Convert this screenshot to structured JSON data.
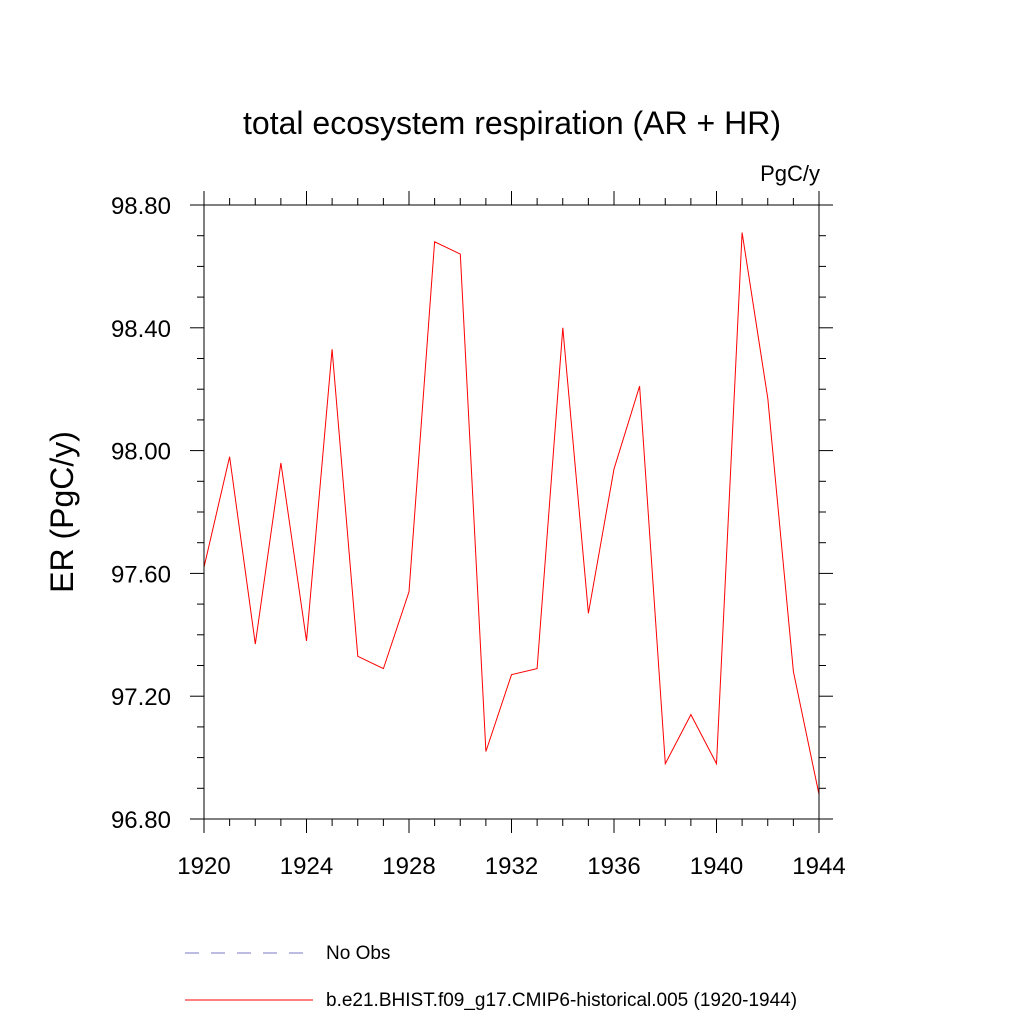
{
  "chart_data": {
    "type": "line",
    "title": "total ecosystem respiration (AR + HR)",
    "units_label": "PgC/y",
    "xlabel": "",
    "ylabel": "ER  (PgC/y)",
    "xlim": [
      1920,
      1944
    ],
    "ylim": [
      96.8,
      98.8
    ],
    "x_ticks": [
      1920,
      1924,
      1928,
      1932,
      1936,
      1940,
      1944
    ],
    "x_tick_labels": [
      "1920",
      "1924",
      "1928",
      "1932",
      "1936",
      "1940",
      "1944"
    ],
    "y_ticks": [
      96.8,
      97.2,
      97.6,
      98.0,
      98.4,
      98.8
    ],
    "y_tick_labels": [
      "96.80",
      "97.20",
      "97.60",
      "98.00",
      "98.40",
      "98.80"
    ],
    "grid": false,
    "legend_position": "bottom",
    "series": [
      {
        "name": "b.e21.BHIST.f09_g17.CMIP6-historical.005 (1920-1944)",
        "color": "#ff0000",
        "style": "solid",
        "x": [
          1920,
          1921,
          1922,
          1923,
          1924,
          1925,
          1926,
          1927,
          1928,
          1929,
          1930,
          1931,
          1932,
          1933,
          1934,
          1935,
          1936,
          1937,
          1938,
          1939,
          1940,
          1941,
          1942,
          1943,
          1944
        ],
        "y": [
          97.62,
          97.98,
          97.37,
          97.96,
          97.38,
          98.33,
          97.33,
          97.29,
          97.54,
          98.68,
          98.64,
          97.02,
          97.27,
          97.29,
          98.4,
          97.47,
          97.94,
          98.21,
          96.98,
          97.14,
          96.98,
          98.71,
          98.17,
          97.28,
          96.88
        ]
      }
    ],
    "legend": [
      {
        "label": "No Obs",
        "color": "#7b7bc9",
        "style": "dashed"
      },
      {
        "label": "b.e21.BHIST.f09_g17.CMIP6-historical.005 (1920-1944)",
        "color": "#ff0000",
        "style": "solid"
      }
    ]
  }
}
